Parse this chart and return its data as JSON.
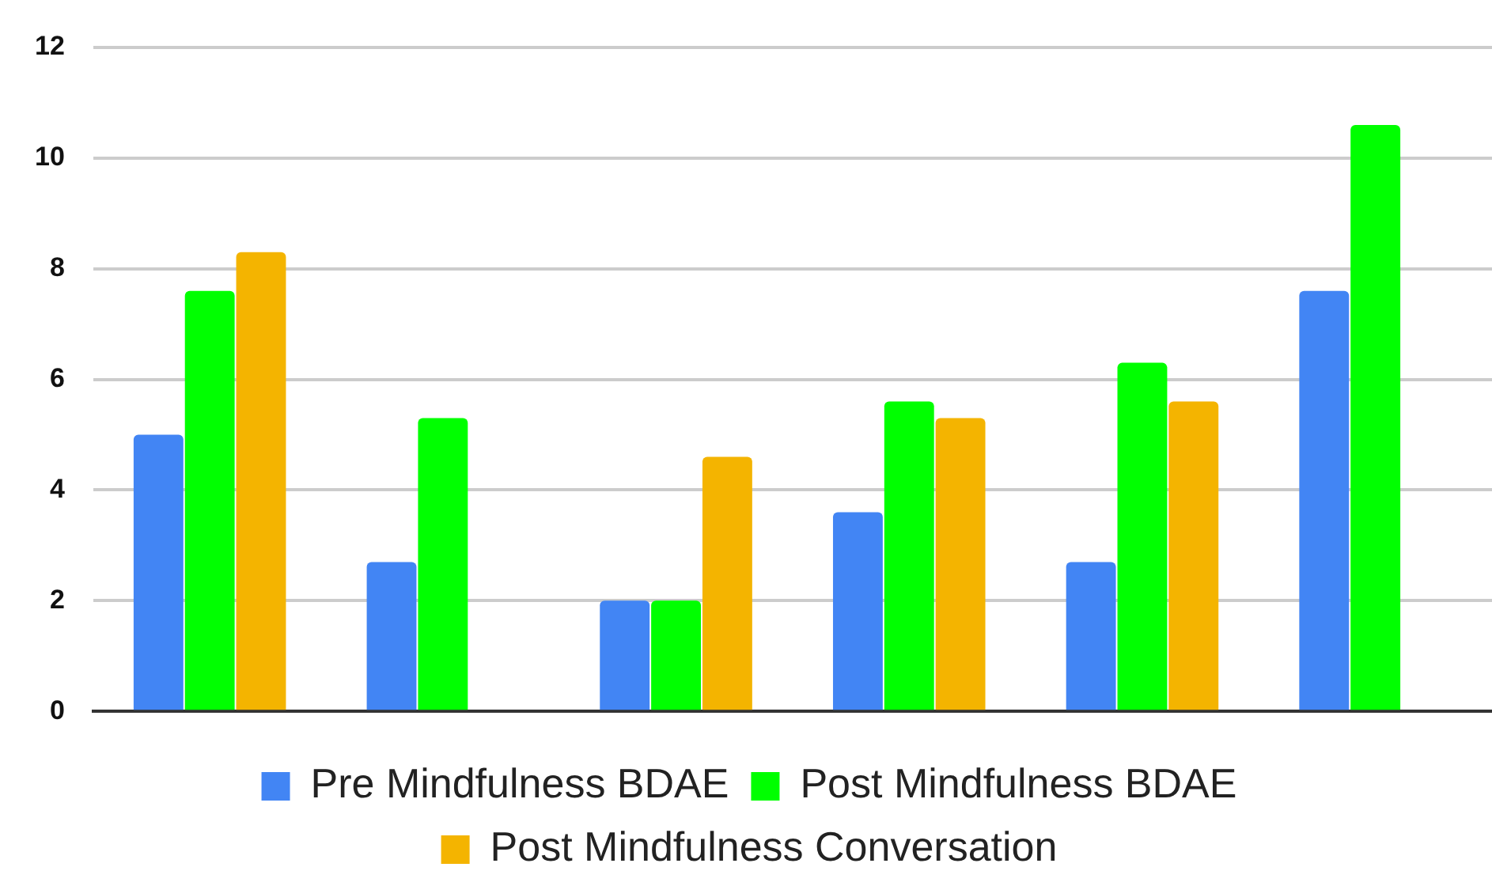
{
  "chart_data": {
    "type": "bar",
    "categories": [
      null,
      null,
      null,
      null,
      null,
      null
    ],
    "series": [
      {
        "name": "Pre Mindfulness BDAE",
        "color": "#4285f4",
        "values": [
          5.0,
          2.7,
          2.0,
          3.6,
          2.7,
          7.6
        ]
      },
      {
        "name": "Post Mindfulness BDAE",
        "color": "#00ff00",
        "values": [
          7.6,
          5.3,
          2.0,
          5.6,
          6.3,
          10.6
        ]
      },
      {
        "name": "Post Mindfulness Conversation",
        "color": "#f4b400",
        "values": [
          8.3,
          null,
          4.6,
          5.3,
          5.6,
          null
        ]
      }
    ],
    "ylim": [
      0,
      12
    ],
    "yticks": [
      0,
      2,
      4,
      6,
      8,
      10,
      12
    ],
    "grid": "y",
    "legend": "bottom"
  }
}
